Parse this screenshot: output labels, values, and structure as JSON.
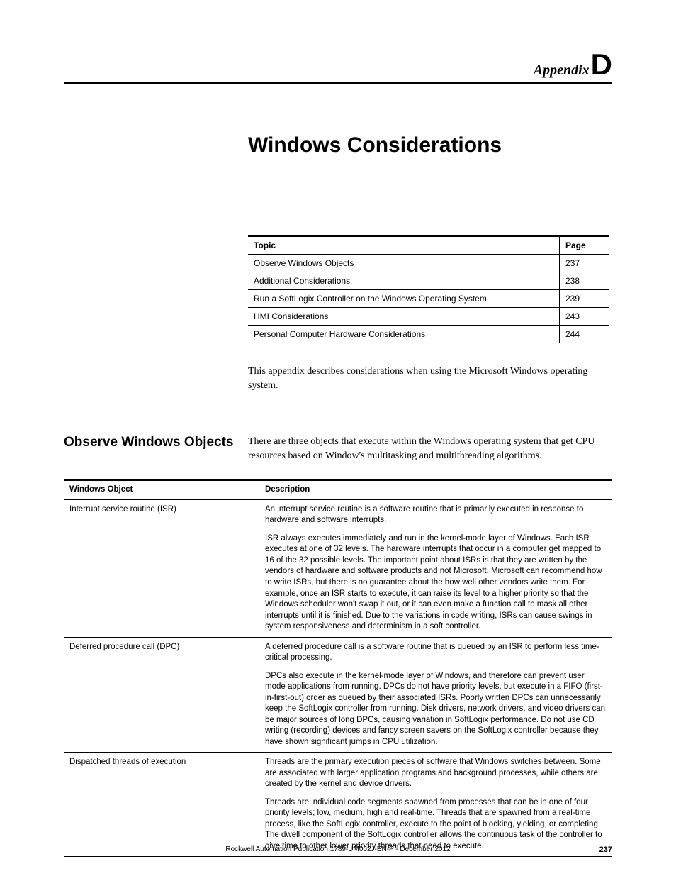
{
  "header": {
    "appendix_word": "Appendix",
    "appendix_letter": "D"
  },
  "chapter_title": "Windows Considerations",
  "toc": {
    "col_topic": "Topic",
    "col_page": "Page",
    "rows": [
      {
        "topic": "Observe Windows Objects",
        "page": "237"
      },
      {
        "topic": "Additional Considerations",
        "page": "238"
      },
      {
        "topic": "Run a SoftLogix Controller on the Windows Operating System",
        "page": "239"
      },
      {
        "topic": "HMI Considerations",
        "page": "243"
      },
      {
        "topic": "Personal Computer Hardware Considerations",
        "page": "244"
      }
    ]
  },
  "intro": "This appendix describes considerations when using the Microsoft Windows operating system.",
  "section": {
    "heading": "Observe Windows Objects",
    "body": "There are three objects that execute within the Windows operating system that get CPU resources based on Window's multitasking and multithreading algorithms."
  },
  "obj_table": {
    "col_object": "Windows Object",
    "col_desc": "Description",
    "rows": [
      {
        "object": "Interrupt service routine (ISR)",
        "p1": "An interrupt service routine is a software routine that is primarily executed in response to hardware and software interrupts.",
        "p2": "ISR always executes immediately and run in the kernel-mode layer of Windows.  Each ISR executes at one of 32 levels. The hardware interrupts that occur in a computer get mapped to 16 of the 32 possible levels. The important point about ISRs is that they are written by the vendors of hardware and software products and not Microsoft. Microsoft can recommend how to write ISRs, but there is no guarantee about the how well other vendors write them. For example, once an ISR starts to execute, it can raise its level to a higher priority so that the Windows scheduler won't swap it out, or it can even make a function call to mask all other interrupts until it is finished. Due to the variations in code writing, ISRs can cause swings in system responsiveness and determinism in a soft controller."
      },
      {
        "object": "Deferred procedure call (DPC)",
        "p1": "A deferred procedure call is a software routine that is queued by an ISR to perform less time-critical processing.",
        "p2": "DPCs also execute in the kernel-mode layer of Windows, and therefore can prevent user mode applications from running. DPCs do not have priority levels, but execute in a FIFO (first-in-first-out) order as queued by their associated ISRs. Poorly written DPCs can unnecessarily keep the SoftLogix controller from running. Disk drivers, network drivers, and video drivers can be major sources of long DPCs, causing variation in SoftLogix performance. Do not use CD writing (recording) devices and fancy screen savers on the SoftLogix controller because they have shown significant jumps in CPU utilization."
      },
      {
        "object": "Dispatched threads of execution",
        "p1": "Threads are the primary execution pieces of software that Windows switches between. Some are associated with larger application programs and background processes, while others are created by the kernel and device drivers.",
        "p2": "Threads are individual code segments spawned from processes that can be in one of four priority levels; low, medium, high and real-time. Threads that are spawned from a real-time process, like the SoftLogix controller, execute to the point of blocking, yielding, or completing.  The dwell component of the SoftLogix controller allows the continuous task of the controller to give time to other lower priority threads that need to execute."
      }
    ]
  },
  "footer": {
    "text": "Rockwell Automation Publication 1789-UM002J-EN-P - December 2012",
    "page": "237"
  }
}
